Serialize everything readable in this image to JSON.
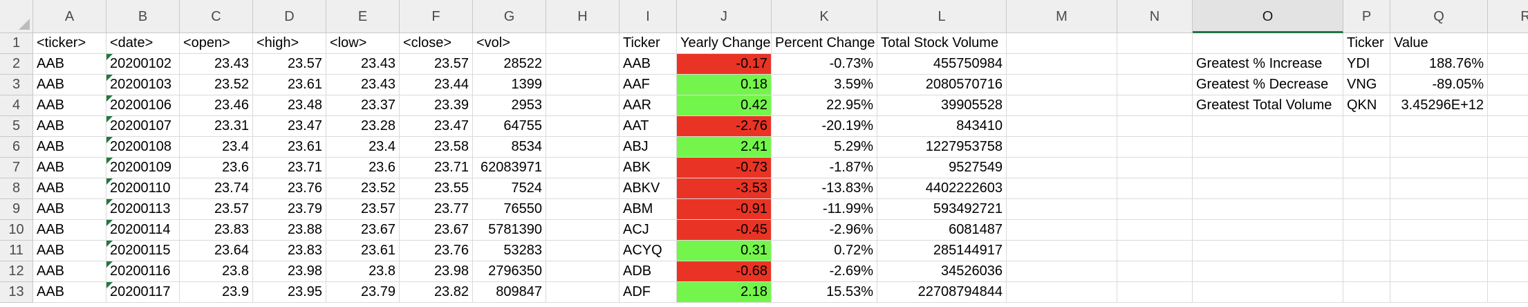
{
  "columns": [
    "A",
    "B",
    "C",
    "D",
    "E",
    "F",
    "G",
    "H",
    "I",
    "J",
    "K",
    "L",
    "M",
    "N",
    "O",
    "P",
    "Q",
    "R"
  ],
  "selected_column": "O",
  "row_numbers": [
    "1",
    "2",
    "3",
    "4",
    "5",
    "6",
    "7",
    "8",
    "9",
    "10",
    "11",
    "12",
    "13"
  ],
  "headers": {
    "ticker": "<ticker>",
    "date": "<date>",
    "open": "<open>",
    "high": "<high>",
    "low": "<low>",
    "close": "<close>",
    "vol": "<vol>",
    "summary_ticker": "Ticker",
    "yearly_change": "Yearly Change",
    "percent_change": "Percent Change",
    "total_volume": "Total Stock Volume",
    "greatest_ticker": "Ticker",
    "greatest_value": "Value"
  },
  "raw_rows": [
    {
      "ticker": "AAB",
      "date": "20200102",
      "open": "23.43",
      "high": "23.57",
      "low": "23.43",
      "close": "23.57",
      "vol": "28522"
    },
    {
      "ticker": "AAB",
      "date": "20200103",
      "open": "23.52",
      "high": "23.61",
      "low": "23.43",
      "close": "23.44",
      "vol": "1399"
    },
    {
      "ticker": "AAB",
      "date": "20200106",
      "open": "23.46",
      "high": "23.48",
      "low": "23.37",
      "close": "23.39",
      "vol": "2953"
    },
    {
      "ticker": "AAB",
      "date": "20200107",
      "open": "23.31",
      "high": "23.47",
      "low": "23.28",
      "close": "23.47",
      "vol": "64755"
    },
    {
      "ticker": "AAB",
      "date": "20200108",
      "open": "23.4",
      "high": "23.61",
      "low": "23.4",
      "close": "23.58",
      "vol": "8534"
    },
    {
      "ticker": "AAB",
      "date": "20200109",
      "open": "23.6",
      "high": "23.71",
      "low": "23.6",
      "close": "23.71",
      "vol": "62083971"
    },
    {
      "ticker": "AAB",
      "date": "20200110",
      "open": "23.74",
      "high": "23.76",
      "low": "23.52",
      "close": "23.55",
      "vol": "7524"
    },
    {
      "ticker": "AAB",
      "date": "20200113",
      "open": "23.57",
      "high": "23.79",
      "low": "23.57",
      "close": "23.77",
      "vol": "76550"
    },
    {
      "ticker": "AAB",
      "date": "20200114",
      "open": "23.83",
      "high": "23.88",
      "low": "23.67",
      "close": "23.67",
      "vol": "5781390"
    },
    {
      "ticker": "AAB",
      "date": "20200115",
      "open": "23.64",
      "high": "23.83",
      "low": "23.61",
      "close": "23.76",
      "vol": "53283"
    },
    {
      "ticker": "AAB",
      "date": "20200116",
      "open": "23.8",
      "high": "23.98",
      "low": "23.8",
      "close": "23.98",
      "vol": "2796350"
    },
    {
      "ticker": "AAB",
      "date": "20200117",
      "open": "23.9",
      "high": "23.95",
      "low": "23.79",
      "close": "23.82",
      "vol": "809847"
    }
  ],
  "summary_rows": [
    {
      "ticker": "AAB",
      "yearly_change": "-0.17",
      "percent_change": "-0.73%",
      "total_volume": "455750984",
      "status": "negative"
    },
    {
      "ticker": "AAF",
      "yearly_change": "0.18",
      "percent_change": "3.59%",
      "total_volume": "2080570716",
      "status": "positive"
    },
    {
      "ticker": "AAR",
      "yearly_change": "0.42",
      "percent_change": "22.95%",
      "total_volume": "39905528",
      "status": "positive"
    },
    {
      "ticker": "AAT",
      "yearly_change": "-2.76",
      "percent_change": "-20.19%",
      "total_volume": "843410",
      "status": "negative"
    },
    {
      "ticker": "ABJ",
      "yearly_change": "2.41",
      "percent_change": "5.29%",
      "total_volume": "1227953758",
      "status": "positive"
    },
    {
      "ticker": "ABK",
      "yearly_change": "-0.73",
      "percent_change": "-1.87%",
      "total_volume": "9527549",
      "status": "negative"
    },
    {
      "ticker": "ABKV",
      "yearly_change": "-3.53",
      "percent_change": "-13.83%",
      "total_volume": "4402222603",
      "status": "negative"
    },
    {
      "ticker": "ABM",
      "yearly_change": "-0.91",
      "percent_change": "-11.99%",
      "total_volume": "593492721",
      "status": "negative"
    },
    {
      "ticker": "ACJ",
      "yearly_change": "-0.45",
      "percent_change": "-2.96%",
      "total_volume": "6081487",
      "status": "negative"
    },
    {
      "ticker": "ACYQ",
      "yearly_change": "0.31",
      "percent_change": "0.72%",
      "total_volume": "285144917",
      "status": "positive"
    },
    {
      "ticker": "ADB",
      "yearly_change": "-0.68",
      "percent_change": "-2.69%",
      "total_volume": "34526036",
      "status": "negative"
    },
    {
      "ticker": "ADF",
      "yearly_change": "2.18",
      "percent_change": "15.53%",
      "total_volume": "22708794844",
      "status": "positive"
    }
  ],
  "greatest": [
    {
      "label": "Greatest % Increase",
      "ticker": "YDI",
      "value": "188.76%"
    },
    {
      "label": "Greatest % Decrease",
      "ticker": "VNG",
      "value": "-89.05%"
    },
    {
      "label": "Greatest Total Volume",
      "ticker": "QKN",
      "value": "3.45296E+12"
    }
  ],
  "colors": {
    "negative_fill": "#e93425",
    "positive_fill": "#74f54c",
    "selected_column_accent": "#217346"
  }
}
